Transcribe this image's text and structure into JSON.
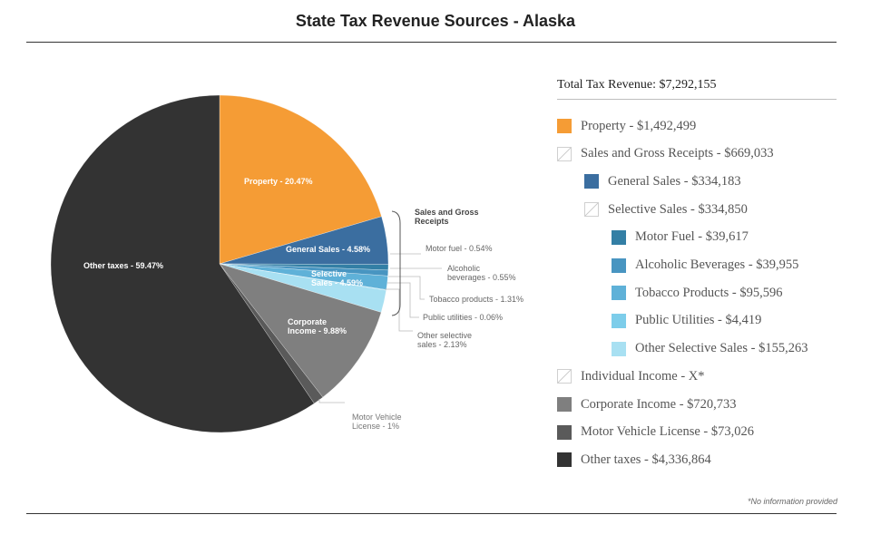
{
  "chart_data": {
    "type": "pie",
    "title": "State Tax Revenue Sources - Alaska",
    "start_angle_deg": 0,
    "direction": "clockwise",
    "slices": [
      {
        "label": "Property - 20.47%",
        "value": 20.47,
        "color": "#f59c35"
      },
      {
        "label": "General Sales - 4.58%",
        "value": 4.58,
        "color": "#3b6ea0"
      },
      {
        "label": "Motor fuel - 0.54%",
        "value": 0.54,
        "color": "#337fa5"
      },
      {
        "label": "Alcoholic beverages - 0.55%",
        "value": 0.55,
        "color": "#4895c1"
      },
      {
        "label": "Tobacco products - 1.31%",
        "value": 1.31,
        "color": "#5fb1d8"
      },
      {
        "label": "Public utilities - 0.06%",
        "value": 0.06,
        "color": "#7dcdea"
      },
      {
        "label": "Other selective sales - 2.13%",
        "value": 2.13,
        "color": "#a8e0f2"
      },
      {
        "label": "Corporate Income - 9.88%",
        "value": 9.88,
        "color": "#7f7f7f"
      },
      {
        "label": "Motor Vehicle License - 1%",
        "value": 1.0,
        "color": "#5a5a5a"
      },
      {
        "label": "Other taxes - 59.47%",
        "value": 59.47,
        "color": "#333333"
      }
    ],
    "group_labels": [
      {
        "label": "Sales and Gross Receipts"
      },
      {
        "label": "Selective Sales - 4.59%"
      }
    ]
  },
  "legend": {
    "total_label": "Total Tax Revenue: $7,292,155",
    "items": [
      {
        "label": "Property - $1,492,499",
        "color": "#f59c35",
        "level": 0
      },
      {
        "label": "Sales and Gross Receipts - $669,033",
        "color": "",
        "level": 0
      },
      {
        "label": "General Sales - $334,183",
        "color": "#3b6ea0",
        "level": 1
      },
      {
        "label": "Selective Sales - $334,850",
        "color": "",
        "level": 1
      },
      {
        "label": "Motor Fuel - $39,617",
        "color": "#337fa5",
        "level": 2
      },
      {
        "label": "Alcoholic Beverages - $39,955",
        "color": "#4895c1",
        "level": 2
      },
      {
        "label": "Tobacco Products - $95,596",
        "color": "#5fb1d8",
        "level": 2
      },
      {
        "label": "Public Utilities - $4,419",
        "color": "#7dcdea",
        "level": 2
      },
      {
        "label": "Other Selective Sales - $155,263",
        "color": "#a8e0f2",
        "level": 2
      },
      {
        "label": "Individual Income - X*",
        "color": "",
        "level": 0
      },
      {
        "label": "Corporate Income - $720,733",
        "color": "#7f7f7f",
        "level": 0
      },
      {
        "label": "Motor Vehicle License - $73,026",
        "color": "#5a5a5a",
        "level": 0
      },
      {
        "label": "Other taxes - $4,336,864",
        "color": "#333333",
        "level": 0
      }
    ]
  },
  "footnote": "*No information provided"
}
